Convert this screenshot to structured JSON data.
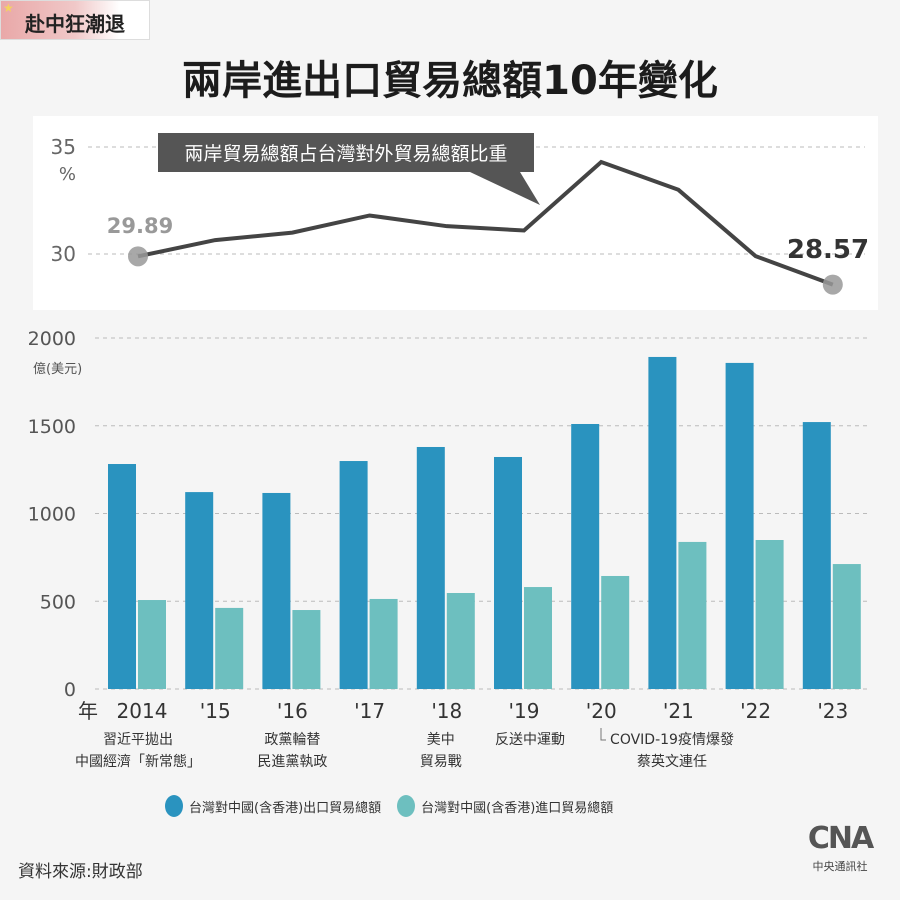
{
  "tag": "赴中狂潮退",
  "title": "兩岸進出口貿易總額10年變化",
  "colors": {
    "export": "#2a93bf",
    "import": "#6dbfbf",
    "line": "#444444",
    "marker": "#999999"
  },
  "chart_data": [
    {
      "type": "line",
      "title": "兩岸貿易總額占台灣對外貿易總額比重",
      "yunit": "%",
      "yticks": [
        "35",
        "30"
      ],
      "ylim": [
        27.5,
        36
      ],
      "x": [
        "2014",
        "2015",
        "2016",
        "2017",
        "2018",
        "2019",
        "2020",
        "2021",
        "2022",
        "2023"
      ],
      "values": [
        29.89,
        30.65,
        31.0,
        31.8,
        31.3,
        31.1,
        34.3,
        33.0,
        29.9,
        28.57
      ],
      "labels": {
        "first": "29.89",
        "last": "28.57"
      }
    },
    {
      "type": "bar",
      "yunit": "億(美元)",
      "ylim": [
        0,
        2000
      ],
      "yticks": [
        "2000",
        "1500",
        "1000",
        "500",
        "0"
      ],
      "xprefix": "年",
      "categories": [
        "2014",
        "'15",
        "'16",
        "'17",
        "'18",
        "'19",
        "'20",
        "'21",
        "'22",
        "'23"
      ],
      "series": [
        {
          "name": "台灣對中國(含香港)出口貿易總額",
          "values": [
            1282,
            1122,
            1117,
            1299,
            1379,
            1322,
            1510,
            1892,
            1858,
            1521
          ]
        },
        {
          "name": "台灣對中國(含香港)進口貿易總額",
          "values": [
            507,
            462,
            450,
            513,
            547,
            581,
            644,
            838,
            849,
            712
          ]
        }
      ],
      "annotations": [
        {
          "at": 0,
          "lines": [
            "習近平拋出",
            "中國經濟「新常態」"
          ]
        },
        {
          "at": 2,
          "lines": [
            "政黨輪替",
            "民進黨執政"
          ]
        },
        {
          "at": 4,
          "lines": [
            "美中",
            "貿易戰"
          ]
        },
        {
          "at": 5,
          "lines": [
            "反送中運動"
          ]
        },
        {
          "at": 6.8,
          "lines": [
            "COVID-19疫情爆發",
            "蔡英文連任"
          ]
        }
      ]
    }
  ],
  "source": "資料來源:財政部",
  "logo": {
    "mark": "CNA",
    "name": "中央通訊社"
  }
}
